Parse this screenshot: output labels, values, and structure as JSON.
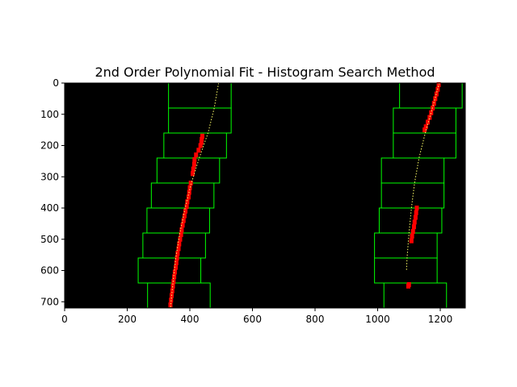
{
  "chart_data": {
    "type": "scatter",
    "title": "2nd Order Polynomial Fit - Histogram Search Method",
    "xlabel": "",
    "ylabel": "",
    "xlim": [
      0,
      1280
    ],
    "ylim": [
      720,
      0
    ],
    "y_inverted": true,
    "grid": false,
    "legend": "none",
    "x_ticks": [
      0,
      200,
      400,
      600,
      800,
      1000,
      1200
    ],
    "y_ticks": [
      0,
      100,
      200,
      300,
      400,
      500,
      600,
      700
    ],
    "background_color": "#000000",
    "window_color": "#00ff00",
    "pixel_color": "#ff0000",
    "fit_color": "#ffff66",
    "sliding_windows": {
      "left": [
        {
          "x0": 332,
          "x1": 532,
          "y0": 0,
          "y1": 80
        },
        {
          "x0": 332,
          "x1": 532,
          "y0": 80,
          "y1": 160
        },
        {
          "x0": 317,
          "x1": 517,
          "y0": 160,
          "y1": 240
        },
        {
          "x0": 295,
          "x1": 495,
          "y0": 240,
          "y1": 320
        },
        {
          "x0": 277,
          "x1": 477,
          "y0": 320,
          "y1": 400
        },
        {
          "x0": 263,
          "x1": 463,
          "y0": 400,
          "y1": 480
        },
        {
          "x0": 250,
          "x1": 450,
          "y0": 480,
          "y1": 560
        },
        {
          "x0": 235,
          "x1": 435,
          "y0": 560,
          "y1": 640
        },
        {
          "x0": 265,
          "x1": 465,
          "y0": 640,
          "y1": 720
        }
      ],
      "right": [
        {
          "x0": 1070,
          "x1": 1270,
          "y0": 0,
          "y1": 80
        },
        {
          "x0": 1050,
          "x1": 1250,
          "y0": 80,
          "y1": 160
        },
        {
          "x0": 1050,
          "x1": 1250,
          "y0": 160,
          "y1": 240
        },
        {
          "x0": 1012,
          "x1": 1212,
          "y0": 240,
          "y1": 320
        },
        {
          "x0": 1012,
          "x1": 1212,
          "y0": 320,
          "y1": 400
        },
        {
          "x0": 1005,
          "x1": 1205,
          "y0": 400,
          "y1": 480
        },
        {
          "x0": 990,
          "x1": 1190,
          "y0": 480,
          "y1": 560
        },
        {
          "x0": 990,
          "x1": 1190,
          "y0": 560,
          "y1": 640
        },
        {
          "x0": 1020,
          "x1": 1220,
          "y0": 640,
          "y1": 720
        }
      ]
    },
    "lane_pixels": {
      "left": [
        {
          "y": 170,
          "x": 440
        },
        {
          "y": 180,
          "x": 438
        },
        {
          "y": 190,
          "x": 437
        },
        {
          "y": 200,
          "x": 434
        },
        {
          "y": 215,
          "x": 428
        },
        {
          "y": 230,
          "x": 420
        },
        {
          "y": 245,
          "x": 415
        },
        {
          "y": 260,
          "x": 414
        },
        {
          "y": 275,
          "x": 411
        },
        {
          "y": 290,
          "x": 409
        },
        {
          "y": 320,
          "x": 403
        },
        {
          "y": 335,
          "x": 400
        },
        {
          "y": 350,
          "x": 398
        },
        {
          "y": 365,
          "x": 396
        },
        {
          "y": 380,
          "x": 392
        },
        {
          "y": 395,
          "x": 390
        },
        {
          "y": 410,
          "x": 386
        },
        {
          "y": 425,
          "x": 383
        },
        {
          "y": 440,
          "x": 380
        },
        {
          "y": 455,
          "x": 377
        },
        {
          "y": 470,
          "x": 374
        },
        {
          "y": 485,
          "x": 372
        },
        {
          "y": 500,
          "x": 369
        },
        {
          "y": 515,
          "x": 366
        },
        {
          "y": 530,
          "x": 364
        },
        {
          "y": 545,
          "x": 361
        },
        {
          "y": 560,
          "x": 359
        },
        {
          "y": 575,
          "x": 357
        },
        {
          "y": 590,
          "x": 355
        },
        {
          "y": 605,
          "x": 352
        },
        {
          "y": 620,
          "x": 350
        },
        {
          "y": 635,
          "x": 348
        },
        {
          "y": 650,
          "x": 346
        },
        {
          "y": 665,
          "x": 344
        },
        {
          "y": 680,
          "x": 342
        },
        {
          "y": 695,
          "x": 340
        },
        {
          "y": 710,
          "x": 338
        }
      ],
      "right": [
        {
          "y": 5,
          "x": 1195
        },
        {
          "y": 20,
          "x": 1192
        },
        {
          "y": 35,
          "x": 1188
        },
        {
          "y": 50,
          "x": 1184
        },
        {
          "y": 65,
          "x": 1180
        },
        {
          "y": 80,
          "x": 1176
        },
        {
          "y": 95,
          "x": 1171
        },
        {
          "y": 110,
          "x": 1166
        },
        {
          "y": 125,
          "x": 1160
        },
        {
          "y": 140,
          "x": 1154
        },
        {
          "y": 150,
          "x": 1150
        },
        {
          "y": 400,
          "x": 1125
        },
        {
          "y": 415,
          "x": 1123
        },
        {
          "y": 430,
          "x": 1121
        },
        {
          "y": 445,
          "x": 1118
        },
        {
          "y": 460,
          "x": 1116
        },
        {
          "y": 475,
          "x": 1113
        },
        {
          "y": 490,
          "x": 1110
        },
        {
          "y": 505,
          "x": 1108
        },
        {
          "y": 645,
          "x": 1100
        },
        {
          "y": 650,
          "x": 1098
        }
      ]
    },
    "fit_lines": {
      "left": [
        {
          "y": 0,
          "x": 492
        },
        {
          "y": 80,
          "x": 478
        },
        {
          "y": 160,
          "x": 458
        },
        {
          "y": 240,
          "x": 430
        },
        {
          "y": 320,
          "x": 405
        },
        {
          "y": 400,
          "x": 385
        },
        {
          "y": 480,
          "x": 368
        },
        {
          "y": 560,
          "x": 355
        },
        {
          "y": 640,
          "x": 346
        },
        {
          "y": 720,
          "x": 338
        }
      ],
      "right": [
        {
          "y": 0,
          "x": 1197
        },
        {
          "y": 80,
          "x": 1175
        },
        {
          "y": 160,
          "x": 1152
        },
        {
          "y": 240,
          "x": 1132
        },
        {
          "y": 320,
          "x": 1118
        },
        {
          "y": 400,
          "x": 1108
        },
        {
          "y": 480,
          "x": 1100
        },
        {
          "y": 560,
          "x": 1094
        },
        {
          "y": 600,
          "x": 1092
        }
      ]
    }
  }
}
